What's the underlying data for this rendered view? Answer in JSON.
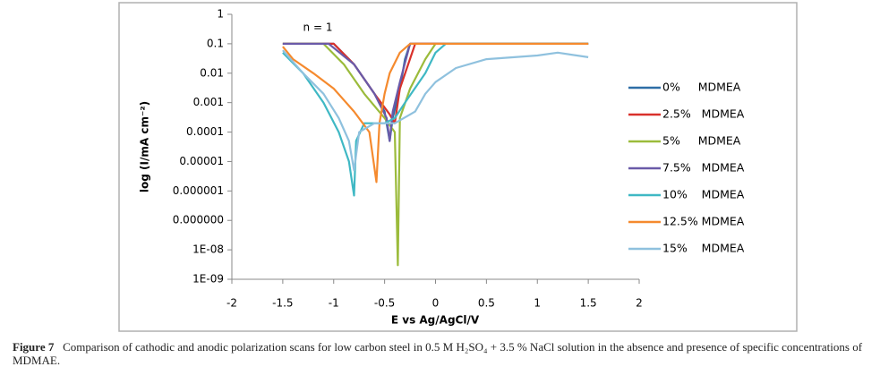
{
  "chart_data": {
    "type": "line",
    "annotation": "n = 1",
    "xlabel": "E vs Ag/AgCl/V",
    "ylabel": "log (I/mA cm⁻²)",
    "log_y": true,
    "grid": false,
    "legend": "right",
    "xlim": [
      -2,
      2
    ],
    "xticks": [
      -2,
      -1.5,
      -1,
      -0.5,
      0,
      0.5,
      1,
      1.5,
      2
    ],
    "ylim": [
      1e-09,
      1
    ],
    "yticks": [
      1,
      0.1,
      0.01,
      0.001,
      0.0001,
      1e-05,
      {
        "value": 1e-06,
        "label": "0.000001"
      },
      {
        "value": 1e-07,
        "label": "0.000000"
      },
      {
        "value": 1e-08,
        "label": "1E-08"
      },
      {
        "value": 1e-09,
        "label": "1E-09"
      }
    ],
    "series": [
      {
        "name": "0%     MDMEA",
        "color": "#2e6ea6",
        "x": [
          -1.5,
          -1.0,
          -0.8,
          -0.6,
          -0.5,
          -0.45,
          -0.42,
          -0.35,
          -0.3,
          -0.25,
          1.5
        ],
        "values": [
          0.1,
          0.1,
          0.02,
          0.002,
          0.0005,
          5e-05,
          0.0003,
          0.003,
          0.03,
          0.1,
          0.1
        ]
      },
      {
        "name": "2.5%   MDMEA",
        "color": "#d9312b",
        "x": [
          -1.5,
          -1.0,
          -0.8,
          -0.6,
          -0.45,
          -0.4,
          -0.35,
          -0.2,
          1.5
        ],
        "values": [
          0.1,
          0.1,
          0.02,
          0.002,
          0.0004,
          0.0002,
          0.003,
          0.1,
          0.1
        ]
      },
      {
        "name": "5%     MDMEA",
        "color": "#9bbb3b",
        "x": [
          -1.5,
          -1.1,
          -0.9,
          -0.7,
          -0.5,
          -0.4,
          -0.37,
          -0.35,
          -0.25,
          -0.1,
          0,
          1.5
        ],
        "values": [
          0.1,
          0.1,
          0.02,
          0.002,
          0.0003,
          0.0001,
          3e-09,
          0.0003,
          0.003,
          0.03,
          0.1,
          0.1
        ]
      },
      {
        "name": "7.5%   MDMEA",
        "color": "#6a5aa8",
        "x": [
          -1.5,
          -1.05,
          -0.8,
          -0.6,
          -0.48,
          -0.45,
          -0.42,
          -0.35,
          -0.25,
          1.5
        ],
        "values": [
          0.1,
          0.1,
          0.02,
          0.002,
          0.0003,
          5e-05,
          0.0005,
          0.005,
          0.1,
          0.1
        ]
      },
      {
        "name": "10%    MDMEA",
        "color": "#3fb8c4",
        "x": [
          -1.5,
          -1.3,
          -1.1,
          -0.95,
          -0.85,
          -0.8,
          -0.78,
          -0.7,
          -0.5,
          -0.4,
          -0.3,
          -0.1,
          0,
          0.1,
          1.5
        ],
        "values": [
          0.05,
          0.01,
          0.001,
          0.0001,
          1e-05,
          7e-07,
          5e-05,
          0.0002,
          0.0002,
          0.0003,
          0.001,
          0.01,
          0.05,
          0.1,
          0.1
        ]
      },
      {
        "name": "12.5% MDMEA",
        "color": "#f58a2e",
        "x": [
          -1.5,
          -1.4,
          -1.2,
          -1.0,
          -0.8,
          -0.65,
          -0.58,
          -0.55,
          -0.5,
          -0.45,
          -0.35,
          -0.25,
          1.5
        ],
        "values": [
          0.08,
          0.03,
          0.01,
          0.003,
          0.0005,
          0.0001,
          2e-06,
          0.0002,
          0.002,
          0.01,
          0.05,
          0.1,
          0.1
        ]
      },
      {
        "name": "15%    MDMEA",
        "color": "#8fc1de",
        "x": [
          -1.5,
          -1.3,
          -1.1,
          -0.95,
          -0.85,
          -0.8,
          -0.75,
          -0.6,
          -0.4,
          -0.2,
          -0.1,
          0,
          0.2,
          0.5,
          1.0,
          1.2,
          1.5
        ],
        "values": [
          0.06,
          0.01,
          0.002,
          0.0003,
          5e-05,
          5e-06,
          0.0001,
          0.0002,
          0.0002,
          0.0005,
          0.002,
          0.005,
          0.015,
          0.03,
          0.04,
          0.05,
          0.035
        ]
      }
    ]
  },
  "caption": {
    "label": "Figure 7",
    "text": "Comparison of cathodic and anodic polarization scans for low carbon steel in 0.5 M H₂SO₄ + 3.5 % NaCl solution in the absence and presence of specific concentrations of MDMAE."
  }
}
